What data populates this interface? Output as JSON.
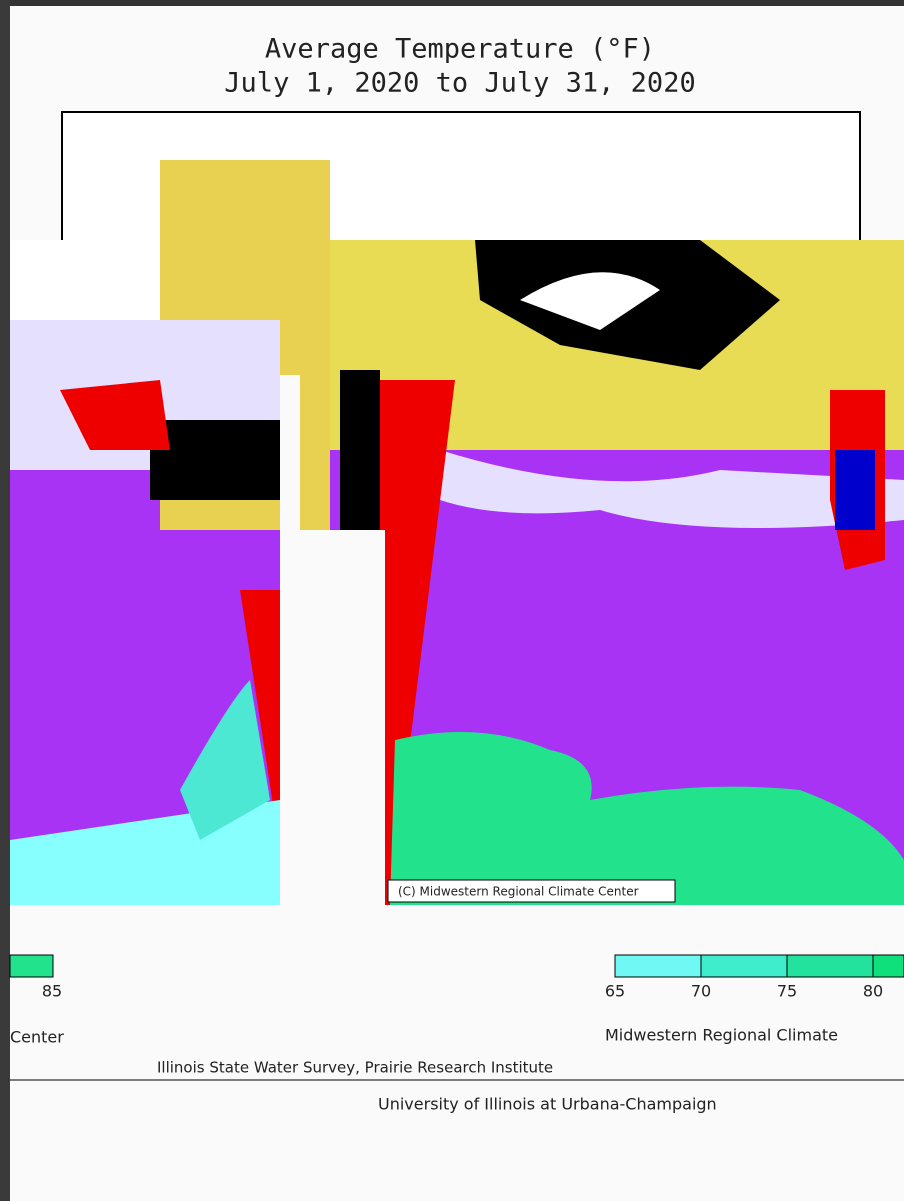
{
  "header": {
    "title": "Average Temperature (°F)",
    "subtitle": "July 1, 2020 to July 31, 2020"
  },
  "map": {
    "credit": "(C) Midwestern Regional Climate Center"
  },
  "legend_left": {
    "labels": [
      85
    ],
    "caption": "Center"
  },
  "legend_right": {
    "labels": [
      65,
      70,
      75,
      80
    ],
    "caption": "Midwestern Regional Climate"
  },
  "footer": {
    "line1": "Illinois State Water Survey, Prairie Research Institute",
    "line2": "University of Illinois at Urbana-Champaign"
  }
}
